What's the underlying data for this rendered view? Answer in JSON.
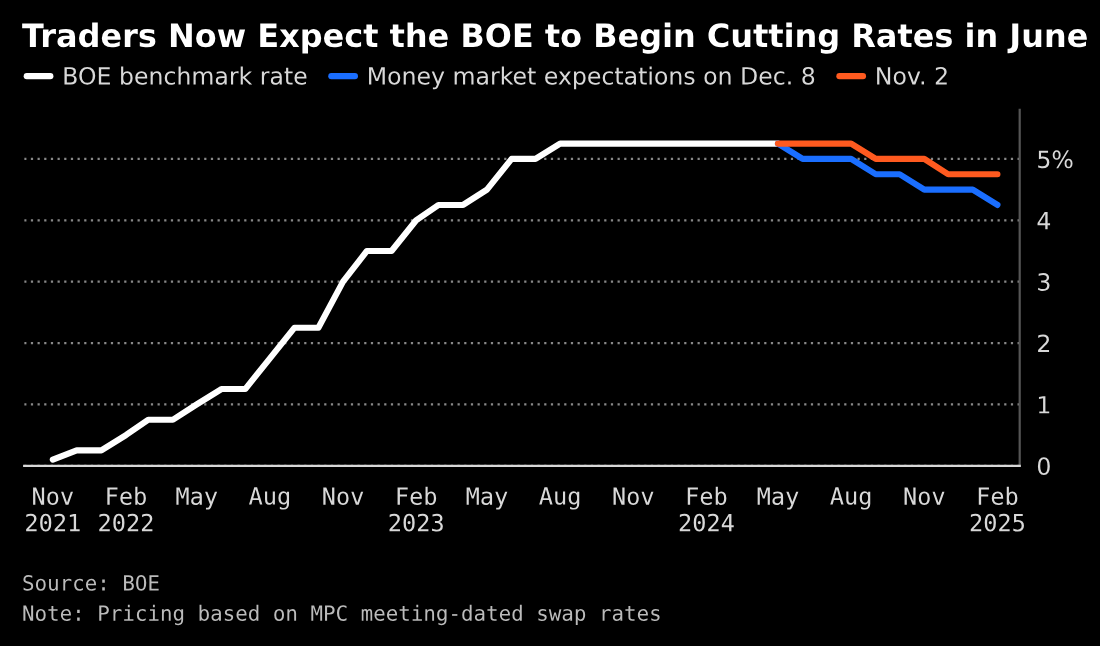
{
  "chart_data": {
    "type": "line",
    "title": "Traders Now Expect the BOE to Begin Cutting Rates in June",
    "series": [
      {
        "name": "BOE benchmark rate",
        "color": "#ffffff",
        "x": [
          "2021-11",
          "2021-12",
          "2022-01",
          "2022-02",
          "2022-03",
          "2022-04",
          "2022-05",
          "2022-06",
          "2022-07",
          "2022-08",
          "2022-09",
          "2022-10",
          "2022-11",
          "2022-12",
          "2023-01",
          "2023-02",
          "2023-03",
          "2023-04",
          "2023-05",
          "2023-06",
          "2023-07",
          "2023-08",
          "2023-09",
          "2023-10",
          "2023-11",
          "2023-12",
          "2024-01",
          "2024-02",
          "2024-03",
          "2024-04",
          "2024-05"
        ],
        "values": [
          0.1,
          0.25,
          0.25,
          0.5,
          0.75,
          0.75,
          1.0,
          1.25,
          1.25,
          1.75,
          2.25,
          2.25,
          3.0,
          3.5,
          3.5,
          4.0,
          4.25,
          4.25,
          4.5,
          5.0,
          5.0,
          5.25,
          5.25,
          5.25,
          5.25,
          5.25,
          5.25,
          5.25,
          5.25,
          5.25,
          5.25
        ]
      },
      {
        "name": "Money market expectations on Dec. 8",
        "color": "#1a6eff",
        "x": [
          "2024-05",
          "2024-06",
          "2024-07",
          "2024-08",
          "2024-09",
          "2024-10",
          "2024-11",
          "2024-12",
          "2025-01",
          "2025-02"
        ],
        "values": [
          5.25,
          5.0,
          5.0,
          5.0,
          4.75,
          4.75,
          4.5,
          4.5,
          4.5,
          4.25
        ]
      },
      {
        "name": "Nov. 2",
        "color": "#ff5a1f",
        "x": [
          "2024-05",
          "2024-06",
          "2024-07",
          "2024-08",
          "2024-09",
          "2024-10",
          "2024-11",
          "2024-12",
          "2025-01",
          "2025-02"
        ],
        "values": [
          5.25,
          5.25,
          5.25,
          5.25,
          5.0,
          5.0,
          5.0,
          4.75,
          4.75,
          4.75
        ]
      }
    ],
    "xlim": [
      "2021-09-26",
      "2025-03-01"
    ],
    "xticks": [
      {
        "value": "2021-11",
        "label": "Nov\n2021"
      },
      {
        "value": "2022-02",
        "label": "Feb\n2022"
      },
      {
        "value": "2022-05",
        "label": "May"
      },
      {
        "value": "2022-08",
        "label": "Aug"
      },
      {
        "value": "2022-11",
        "label": "Nov"
      },
      {
        "value": "2023-02",
        "label": "Feb\n2023"
      },
      {
        "value": "2023-05",
        "label": "May"
      },
      {
        "value": "2023-08",
        "label": "Aug"
      },
      {
        "value": "2023-11",
        "label": "Nov"
      },
      {
        "value": "2024-02",
        "label": "Feb\n2024"
      },
      {
        "value": "2024-05",
        "label": "May"
      },
      {
        "value": "2024-08",
        "label": "Aug"
      },
      {
        "value": "2024-11",
        "label": "Nov"
      },
      {
        "value": "2025-02",
        "label": "Feb\n2025"
      }
    ],
    "ylim": [
      0,
      5.8
    ],
    "yticks": [
      0,
      1,
      2,
      3,
      4,
      {
        "value": 5,
        "label": "5%"
      }
    ],
    "grid": "y",
    "legend": "top left",
    "line_style": "solid",
    "annotations": [
      "Source: BOE",
      "Note: Pricing based on MPC meeting-dated swap rates"
    ]
  }
}
